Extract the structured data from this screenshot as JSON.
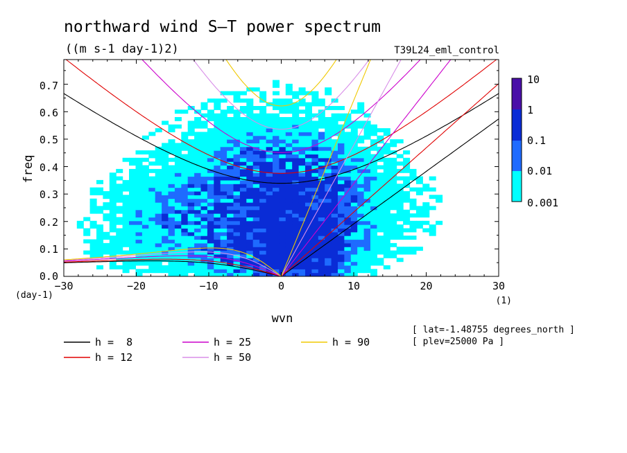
{
  "chart_data": {
    "type": "heatmap",
    "title": "northward wind S–T power spectrum",
    "subtitle": "((m s-1 day-1)2)",
    "run_label": "T39L24_eml_control",
    "xlabel": "wvn",
    "x_unit": "(1)",
    "ylabel": "freq",
    "y_unit": "(day-1)",
    "xlim": [
      -30,
      30
    ],
    "ylim": [
      0,
      0.79
    ],
    "x_ticks": [
      "−30",
      "−20",
      "−10",
      "0",
      "10",
      "20",
      "30"
    ],
    "y_ticks": [
      "0.0",
      "0.1",
      "0.2",
      "0.3",
      "0.4",
      "0.5",
      "0.6",
      "0.7"
    ],
    "colorbar": {
      "labels": [
        "10",
        "1",
        "0.1",
        "0.01",
        "0.001"
      ],
      "levels": [
        0.001,
        0.01,
        0.1,
        1,
        10
      ],
      "colors": [
        "#00ffff",
        "#1e6bff",
        "#0a2cd6",
        "#4a0fa8"
      ]
    },
    "dispersion_curves": [
      {
        "name": "h =  8",
        "h": 8,
        "color": "#000000"
      },
      {
        "name": "h = 12",
        "h": 12,
        "color": "#e00000"
      },
      {
        "name": "h = 25",
        "h": 25,
        "color": "#cc00cc"
      },
      {
        "name": "h = 50",
        "h": 50,
        "color": "#d88ee8"
      },
      {
        "name": "h = 90",
        "h": 90,
        "color": "#f0c800"
      }
    ],
    "annotations": [
      "[ lat=-1.48755 degrees_north ]",
      "[ plev=25000 Pa ]"
    ]
  }
}
